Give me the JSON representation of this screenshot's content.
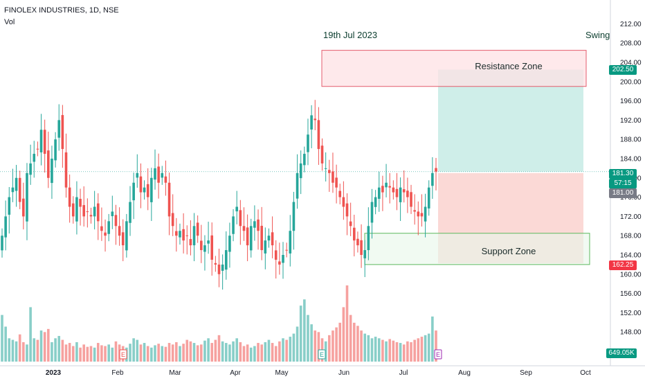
{
  "header": {
    "symbol_line": "FINOLEX INDUSTRIES, 1D, NSE",
    "indicator": "Vol"
  },
  "annotations": {
    "date_note": "19th Jul 2023",
    "style_note": "Swing",
    "resistance_label": "Resistance Zone",
    "support_label": "Support Zone"
  },
  "price_tags": {
    "target": "202.50",
    "current": "181.30",
    "countdown": "57:15",
    "entry": "181.00",
    "stop": "162.25",
    "volume": "649.05K"
  },
  "colors": {
    "up": "#26a69a",
    "down": "#ef5350",
    "resistance_fill": "#fde2e4",
    "resistance_border": "#e45b6c",
    "support_fill": "#e8f6e9",
    "support_border": "#5cb85c",
    "target_fill": "#cfeee9",
    "stop_fill": "#fbd9d6"
  },
  "chart_data": {
    "type": "candlestick",
    "y_axis": {
      "ticks": [
        "212.00",
        "208.00",
        "204.00",
        "200.00",
        "196.00",
        "192.00",
        "188.00",
        "184.00",
        "180.00",
        "176.00",
        "172.00",
        "168.00",
        "164.00",
        "160.00",
        "156.00",
        "152.00",
        "148.00"
      ],
      "range": [
        144,
        214
      ]
    },
    "x_axis": {
      "ticks": [
        "2023",
        "Feb",
        "Mar",
        "Apr",
        "May",
        "Jun",
        "Jul",
        "Aug",
        "Sep",
        "Oct"
      ]
    },
    "zones": {
      "resistance": [
        199,
        206.5
      ],
      "support": [
        162,
        168.5
      ],
      "target_box": [
        181.3,
        202.5
      ],
      "stop_box": [
        162.25,
        181.0
      ]
    },
    "series_close": [
      168,
      172,
      176,
      178,
      180,
      175,
      172,
      181,
      183,
      185,
      186,
      190,
      185,
      180,
      184,
      188,
      192,
      186,
      178,
      174,
      172,
      176,
      174,
      172,
      173,
      172,
      174,
      171,
      169,
      168,
      171,
      173,
      170,
      168,
      166,
      171,
      175,
      179,
      181,
      177,
      178,
      176,
      180,
      182,
      179,
      181,
      179,
      172,
      170,
      168,
      169,
      167,
      168,
      166,
      170,
      168,
      165,
      166,
      167,
      163,
      162,
      160,
      162,
      165,
      168,
      172,
      174,
      170,
      169,
      166,
      170,
      171,
      169,
      165,
      167,
      168,
      166,
      163,
      162,
      164,
      165,
      169,
      175,
      181,
      183,
      185,
      189,
      193,
      192,
      186,
      183,
      182,
      181,
      179,
      178,
      176,
      174,
      172,
      170,
      167,
      166,
      164,
      165,
      170,
      175,
      176,
      178,
      177,
      179,
      178,
      177,
      176,
      178,
      177,
      176,
      174,
      173,
      172,
      172,
      174,
      178,
      181,
      181.3
    ],
    "volume": [
      60,
      45,
      30,
      28,
      26,
      35,
      25,
      22,
      70,
      30,
      28,
      40,
      38,
      42,
      25,
      30,
      33,
      28,
      22,
      24,
      20,
      25,
      18,
      22,
      19,
      20,
      18,
      24,
      21,
      20,
      22,
      18,
      26,
      22,
      20,
      18,
      23,
      30,
      28,
      22,
      24,
      20,
      18,
      21,
      23,
      20,
      19,
      24,
      22,
      25,
      20,
      23,
      28,
      26,
      24,
      21,
      22,
      27,
      30,
      24,
      28,
      34,
      26,
      24,
      22,
      26,
      30,
      25,
      20,
      22,
      18,
      20,
      24,
      22,
      25,
      28,
      24,
      20,
      26,
      30,
      28,
      32,
      36,
      45,
      72,
      80,
      60,
      48,
      40,
      38,
      30,
      26,
      34,
      40,
      44,
      50,
      70,
      98,
      60,
      50,
      46,
      40,
      36,
      34,
      30,
      32,
      30,
      28,
      26,
      29,
      27,
      25,
      24,
      22,
      26,
      25,
      28,
      30,
      32,
      34,
      36,
      58,
      40
    ]
  }
}
